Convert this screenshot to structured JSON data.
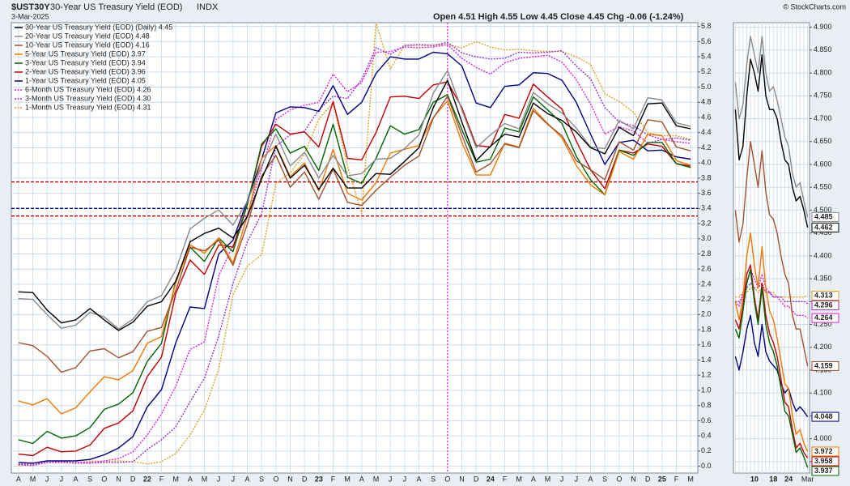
{
  "header": {
    "symbol": "$UST30Y",
    "name": "30-Year US Treasury Yield (EOD)",
    "exchange": "INDX",
    "date": "3-Mar-2025",
    "quote": "Open 4.51 High 4.55 Low 4.45 Close 4.45 Chg -0.06 (-1.24%)",
    "credit": "© StockCharts.com"
  },
  "chart_data": [
    {
      "type": "line",
      "categories": [
        "A",
        "M",
        "J",
        "J",
        "A",
        "S",
        "O",
        "N",
        "D",
        "22",
        "F",
        "M",
        "A",
        "M",
        "J",
        "J",
        "A",
        "S",
        "O",
        "N",
        "D",
        "23",
        "F",
        "M",
        "A",
        "M",
        "J",
        "J",
        "A",
        "S",
        "O",
        "N",
        "D",
        "24",
        "F",
        "M",
        "A",
        "M",
        "J",
        "J",
        "A",
        "S",
        "O",
        "N",
        "D",
        "25",
        "F",
        "M"
      ],
      "ylim": [
        -0.09,
        5.85
      ],
      "yticks": [
        {
          "value": 0,
          "label": "0.0"
        },
        0.2,
        0.4,
        0.6,
        0.8,
        {
          "value": 1,
          "label": "1.0"
        },
        1.2,
        1.4,
        1.6,
        1.8,
        {
          "value": 2,
          "label": "2.0"
        },
        2.2,
        2.4,
        2.6,
        2.8,
        {
          "value": 3,
          "label": "3.0"
        },
        3.2,
        3.4,
        3.6,
        3.8,
        {
          "value": 4,
          "label": "4.0"
        },
        4.2,
        4.4,
        4.6,
        4.8,
        {
          "value": 5,
          "label": "5.0"
        },
        5.2,
        5.4,
        5.6,
        5.8
      ],
      "grid": true,
      "legend": "top-left",
      "hlines": [
        {
          "value": 3.75,
          "color": "#c00000"
        },
        {
          "value": 3.4,
          "color": "#000080"
        },
        {
          "value": 3.3,
          "color": "#c00000"
        }
      ],
      "vline": {
        "category_index": 30,
        "color": "#e020e0"
      },
      "series": [
        {
          "name": "30-Year US Treasury Yield (EOD) (Daily) 4.45",
          "color": "#000000",
          "style": "solid",
          "values": [
            2.3,
            2.29,
            2.06,
            1.89,
            1.93,
            2.08,
            1.93,
            1.79,
            1.9,
            2.11,
            2.17,
            2.44,
            2.96,
            3.07,
            3.14,
            3.01,
            3.29,
            3.79,
            4.22,
            3.8,
            3.97,
            3.65,
            3.93,
            3.67,
            3.67,
            3.86,
            3.85,
            4.02,
            4.2,
            4.73,
            5.09,
            4.54,
            4.03,
            4.22,
            4.38,
            4.34,
            4.79,
            4.65,
            4.56,
            4.41,
            4.2,
            4.12,
            4.47,
            4.36,
            4.78,
            4.79,
            4.49,
            4.45
          ]
        },
        {
          "name": "20-Year US Treasury Yield (EOD) 4.48",
          "color": "#8a8a8a",
          "style": "solid",
          "values": [
            2.21,
            2.2,
            2.0,
            1.82,
            1.86,
            2.03,
            1.97,
            1.81,
            1.94,
            2.17,
            2.25,
            2.59,
            3.13,
            3.27,
            3.38,
            3.18,
            3.49,
            3.96,
            4.38,
            3.96,
            4.14,
            3.8,
            4.1,
            3.83,
            3.86,
            4.05,
            4.06,
            4.19,
            4.37,
            4.92,
            5.22,
            4.7,
            4.2,
            4.37,
            4.52,
            4.45,
            4.93,
            4.78,
            4.66,
            4.46,
            4.21,
            4.19,
            4.56,
            4.45,
            4.86,
            4.83,
            4.53,
            4.48
          ]
        },
        {
          "name": "10-Year US Treasury Yield (EOD) 4.16",
          "color": "#a0522d",
          "style": "solid",
          "values": [
            1.63,
            1.59,
            1.45,
            1.24,
            1.3,
            1.52,
            1.55,
            1.43,
            1.51,
            1.78,
            1.83,
            2.32,
            2.89,
            2.84,
            2.98,
            2.65,
            3.19,
            3.83,
            4.1,
            3.68,
            3.88,
            3.52,
            3.92,
            3.48,
            3.44,
            3.64,
            3.81,
            3.97,
            4.09,
            4.59,
            4.88,
            4.37,
            3.88,
            3.99,
            4.25,
            4.2,
            4.69,
            4.51,
            4.36,
            4.03,
            3.91,
            3.78,
            4.28,
            4.17,
            4.57,
            4.54,
            4.21,
            4.16
          ]
        },
        {
          "name": "5-Year US Treasury Yield (EOD) 3.97",
          "color": "#f07800",
          "style": "solid",
          "values": [
            0.86,
            0.81,
            0.89,
            0.69,
            0.77,
            0.98,
            1.18,
            1.14,
            1.26,
            1.62,
            1.71,
            2.42,
            2.92,
            2.81,
            3.01,
            2.68,
            3.3,
            4.06,
            4.23,
            3.82,
            4.0,
            3.63,
            4.18,
            3.6,
            3.51,
            3.74,
            4.13,
            4.18,
            4.23,
            4.6,
            4.82,
            4.27,
            3.84,
            3.84,
            4.26,
            4.21,
            4.72,
            4.52,
            4.33,
            3.97,
            3.71,
            3.58,
            4.15,
            4.05,
            4.38,
            4.36,
            4.03,
            3.97
          ]
        },
        {
          "name": "3-Year US Treasury Yield (EOD) 3.94",
          "color": "#006400",
          "style": "solid",
          "values": [
            0.35,
            0.3,
            0.46,
            0.37,
            0.4,
            0.51,
            0.75,
            0.82,
            0.97,
            1.38,
            1.62,
            2.45,
            2.89,
            2.7,
            3.01,
            2.83,
            3.45,
            4.25,
            4.45,
            4.13,
            4.22,
            3.9,
            4.51,
            3.81,
            3.73,
            4.06,
            4.49,
            4.38,
            4.44,
            4.8,
            4.9,
            4.44,
            4.01,
            4.05,
            4.46,
            4.41,
            4.87,
            4.7,
            4.52,
            4.09,
            3.78,
            3.58,
            4.17,
            4.1,
            4.27,
            4.27,
            3.99,
            3.94
          ]
        },
        {
          "name": "2-Year US Treasury Yield (EOD) 3.96",
          "color": "#c00000",
          "style": "solid",
          "values": [
            0.16,
            0.14,
            0.25,
            0.19,
            0.2,
            0.28,
            0.5,
            0.57,
            0.73,
            1.18,
            1.44,
            2.28,
            2.72,
            2.53,
            2.92,
            2.89,
            3.45,
            4.22,
            4.51,
            4.38,
            4.41,
            4.21,
            4.81,
            4.06,
            4.04,
            4.4,
            4.87,
            4.88,
            4.85,
            5.03,
            5.07,
            4.73,
            4.23,
            4.21,
            4.64,
            4.59,
            5.04,
            4.87,
            4.71,
            4.29,
            3.91,
            3.66,
            4.17,
            4.13,
            4.25,
            4.22,
            3.99,
            3.96
          ]
        },
        {
          "name": "1-Year US Treasury Yield (EOD) 4.05",
          "color": "#000080",
          "style": "solid",
          "values": [
            0.05,
            0.04,
            0.07,
            0.07,
            0.07,
            0.09,
            0.15,
            0.24,
            0.39,
            0.78,
            1.01,
            1.63,
            2.1,
            2.08,
            2.8,
            2.98,
            3.5,
            4.05,
            4.66,
            4.74,
            4.73,
            4.68,
            5.02,
            4.64,
            4.8,
            5.18,
            5.4,
            5.37,
            5.37,
            5.46,
            5.44,
            5.28,
            4.79,
            4.73,
            5.01,
            5.03,
            5.19,
            5.18,
            5.09,
            4.8,
            4.38,
            3.98,
            4.27,
            4.3,
            4.16,
            4.17,
            4.08,
            4.05
          ]
        },
        {
          "name": "6-Month US Treasury Yield (EOD) 4.26",
          "color": "#e020e0",
          "style": "dotted",
          "values": [
            0.03,
            0.03,
            0.05,
            0.05,
            0.05,
            0.05,
            0.07,
            0.1,
            0.19,
            0.41,
            0.69,
            1.06,
            1.54,
            1.64,
            2.51,
            2.91,
            3.32,
            3.92,
            4.57,
            4.7,
            4.76,
            4.8,
            5.17,
            4.94,
            5.06,
            5.46,
            5.47,
            5.53,
            5.52,
            5.53,
            5.56,
            5.38,
            5.26,
            5.17,
            5.32,
            5.38,
            5.4,
            5.42,
            5.33,
            5.1,
            4.78,
            4.38,
            4.48,
            4.42,
            4.26,
            4.31,
            4.28,
            4.26
          ]
        },
        {
          "name": "3-Month US Treasury Yield (EOD) 4.30",
          "color": "#9932cc",
          "style": "dotted",
          "values": [
            0.02,
            0.01,
            0.05,
            0.06,
            0.04,
            0.04,
            0.05,
            0.05,
            0.06,
            0.22,
            0.35,
            0.52,
            0.85,
            1.16,
            1.72,
            2.41,
            2.96,
            3.33,
            4.22,
            4.37,
            4.42,
            4.7,
            4.88,
            4.85,
            5.1,
            5.52,
            5.43,
            5.55,
            5.56,
            5.55,
            5.59,
            5.45,
            5.4,
            5.37,
            5.38,
            5.46,
            5.45,
            5.46,
            5.48,
            5.28,
            5.11,
            4.73,
            4.54,
            4.49,
            4.37,
            4.31,
            4.33,
            4.3
          ]
        },
        {
          "name": "1-Month US Treasury Yield (EOD) 4.31",
          "color": "#daa520",
          "style": "dotted",
          "values": [
            0.01,
            0.01,
            0.05,
            0.05,
            0.04,
            0.07,
            0.06,
            0.07,
            0.06,
            0.03,
            0.06,
            0.17,
            0.41,
            0.74,
            1.28,
            2.26,
            2.64,
            2.79,
            3.73,
            3.87,
            4.12,
            4.58,
            4.79,
            3.96,
            3.33,
            5.84,
            5.24,
            5.55,
            5.55,
            5.55,
            5.56,
            5.52,
            5.6,
            5.53,
            5.49,
            5.5,
            5.48,
            5.47,
            5.47,
            5.4,
            5.3,
            4.91,
            4.81,
            4.67,
            4.4,
            4.36,
            4.36,
            4.31
          ]
        }
      ]
    },
    {
      "type": "line",
      "categories": [
        null,
        null,
        null,
        null,
        null,
        "10",
        null,
        null,
        null,
        null,
        "18",
        null,
        null,
        null,
        "24",
        null,
        null,
        null,
        null,
        "Mar"
      ],
      "ylim": [
        3.925,
        4.91
      ],
      "yticks": [
        {
          "value": 3.95,
          "label": "3.950"
        },
        {
          "value": 4,
          "label": "4.000"
        },
        {
          "value": 4.05,
          "label": "4.050"
        },
        {
          "value": 4.1,
          "label": "4.100"
        },
        {
          "value": 4.15,
          "label": "4.150"
        },
        {
          "value": 4.2,
          "label": "4.200"
        },
        {
          "value": 4.25,
          "label": "4.250"
        },
        {
          "value": 4.3,
          "label": "4.300"
        },
        {
          "value": 4.35,
          "label": "4.350"
        },
        {
          "value": 4.4,
          "label": "4.400"
        },
        {
          "value": 4.45,
          "label": "4.450"
        },
        {
          "value": 4.5,
          "label": "4.500"
        },
        {
          "value": 4.55,
          "label": "4.550"
        },
        {
          "value": 4.6,
          "label": "4.600"
        },
        {
          "value": 4.65,
          "label": "4.650"
        },
        {
          "value": 4.7,
          "label": "4.700"
        },
        {
          "value": 4.75,
          "label": "4.750"
        },
        {
          "value": 4.8,
          "label": "4.800"
        },
        {
          "value": 4.85,
          "label": "4.850"
        },
        {
          "value": 4.9,
          "label": "4.900"
        }
      ],
      "grid": true,
      "series": [
        {
          "color": "#000000",
          "style": "solid",
          "values": [
            4.72,
            4.61,
            4.64,
            4.75,
            4.83,
            4.8,
            4.76,
            4.84,
            4.75,
            4.72,
            4.72,
            4.7,
            4.65,
            4.61,
            4.6,
            4.55,
            4.52,
            4.53,
            4.5,
            4.462
          ]
        },
        {
          "color": "#8a8a8a",
          "style": "solid",
          "values": [
            4.78,
            4.7,
            4.73,
            4.82,
            4.88,
            4.84,
            4.8,
            4.88,
            4.8,
            4.76,
            4.77,
            4.74,
            4.7,
            4.66,
            4.64,
            4.58,
            4.55,
            4.56,
            4.52,
            4.485
          ]
        },
        {
          "color": "#a0522d",
          "style": "solid",
          "values": [
            4.5,
            4.43,
            4.47,
            4.57,
            4.65,
            4.6,
            4.55,
            4.63,
            4.54,
            4.49,
            4.48,
            4.45,
            4.4,
            4.36,
            4.34,
            4.27,
            4.24,
            4.24,
            4.2,
            4.159
          ]
        },
        {
          "color": "#f07800",
          "style": "solid",
          "values": [
            4.3,
            4.26,
            4.31,
            4.4,
            4.45,
            4.38,
            4.33,
            4.42,
            4.33,
            4.28,
            4.26,
            4.22,
            4.17,
            4.12,
            4.11,
            4.05,
            4.01,
            4.02,
            3.99,
            3.972
          ]
        },
        {
          "color": "#006400",
          "style": "solid",
          "values": [
            4.24,
            4.22,
            4.28,
            4.34,
            4.37,
            4.3,
            4.25,
            4.33,
            4.25,
            4.21,
            4.19,
            4.16,
            4.11,
            4.06,
            4.05,
            4.01,
            3.97,
            3.98,
            3.96,
            3.937
          ]
        },
        {
          "color": "#c00000",
          "style": "solid",
          "values": [
            4.26,
            4.24,
            4.29,
            4.36,
            4.38,
            4.31,
            4.26,
            4.34,
            4.27,
            4.23,
            4.21,
            4.18,
            4.13,
            4.08,
            4.07,
            4.02,
            3.98,
            3.99,
            3.97,
            3.958
          ]
        },
        {
          "color": "#000080",
          "style": "solid",
          "values": [
            4.18,
            4.15,
            4.19,
            4.24,
            4.27,
            4.21,
            4.18,
            4.25,
            4.19,
            4.17,
            4.16,
            4.15,
            4.12,
            4.1,
            4.11,
            4.08,
            4.06,
            4.07,
            4.06,
            4.048
          ]
        },
        {
          "color": "#e020e0",
          "style": "dotted",
          "values": [
            4.3,
            4.29,
            4.32,
            4.34,
            4.37,
            4.35,
            4.33,
            4.36,
            4.33,
            4.32,
            4.31,
            4.31,
            4.3,
            4.29,
            4.29,
            4.28,
            4.27,
            4.27,
            4.27,
            4.264
          ]
        },
        {
          "color": "#9932cc",
          "style": "dotted",
          "values": [
            4.3,
            4.3,
            4.31,
            4.33,
            4.34,
            4.33,
            4.33,
            4.34,
            4.32,
            4.32,
            4.31,
            4.31,
            4.31,
            4.3,
            4.3,
            4.3,
            4.3,
            4.3,
            4.3,
            4.296
          ]
        },
        {
          "color": "#daa520",
          "style": "dotted",
          "values": [
            4.31,
            4.31,
            4.32,
            4.32,
            4.33,
            4.33,
            4.32,
            4.33,
            4.32,
            4.32,
            4.32,
            4.31,
            4.31,
            4.31,
            4.31,
            4.31,
            4.31,
            4.31,
            4.31,
            4.313
          ]
        }
      ]
    }
  ]
}
